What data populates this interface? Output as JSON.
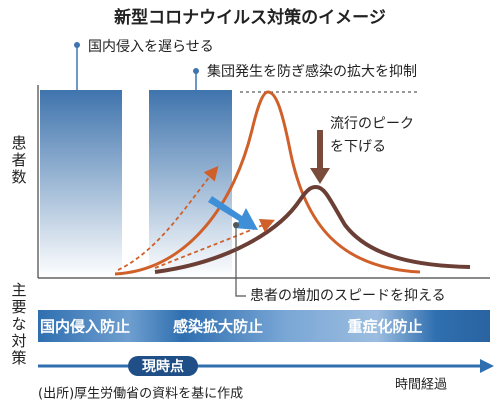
{
  "title": "新型コロナウイルス対策のイメージ",
  "annotations": {
    "delay_entry": "国内侵入を遅らせる",
    "suppress_spread": "集団発生を防ぎ感染の拡大を抑制",
    "lower_peak": [
      "流行のピーク",
      "を下げる"
    ],
    "slow_increase": "患者の増加のスピードを抑える"
  },
  "y_axis_label": "患者数",
  "measures_label": "主要な対策",
  "measures": [
    "国内侵入防止",
    "感染拡大防止",
    "重症化防止"
  ],
  "now": "現時点",
  "time_label": "時間経過",
  "source": "(出所)厚生労働省の資料を基に作成"
}
